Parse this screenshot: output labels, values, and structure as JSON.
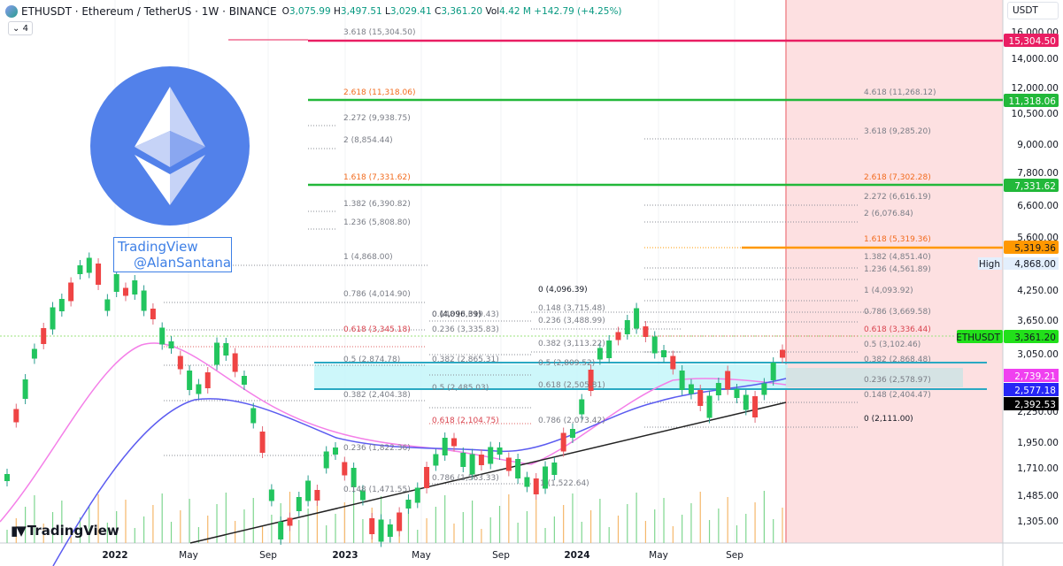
{
  "header": {
    "symbol_title": "ETHUSDT · Ethereum / TetherUS · 1W · BINANCE",
    "open_label": "O",
    "open": "3,075.99",
    "high_label": "H",
    "high": "3,497.51",
    "low_label": "L",
    "low": "3,029.41",
    "close_label": "C",
    "close": "3,361.20",
    "vol_label": "Vol",
    "vol": "4.42 M",
    "change": "+142.79 (+4.25%)",
    "indicators_toggle": "⌄ 4"
  },
  "currency_button": "USDT",
  "watermark": {
    "line1": "TradingView",
    "line2": "@AlanSantana"
  },
  "branding": "TradingView",
  "colors": {
    "up": "#22c55e",
    "down": "#ef4444",
    "fib_green": "#22b83a",
    "fib_pink": "#e91e63",
    "fib_orange": "#ff9800",
    "ma_pink": "#f47fe8",
    "ma_blue": "#5b5bf0",
    "trend": "#222222",
    "zone": "#c8f6fa",
    "projection_bg": "#fde0e1",
    "eth_blue": "#5281ea"
  },
  "chart_data": {
    "type": "candlestick",
    "title": "ETHUSDT · Ethereum / TetherUS · 1W · BINANCE",
    "xlabel": "",
    "ylabel": "USDT",
    "y_scale": "log",
    "ylim": [
      1200,
      17000
    ],
    "y_ticks": [
      "16,000.00",
      "14,000.00",
      "12,000.00",
      "10,500.00",
      "9,000.00",
      "7,800.00",
      "6,600.00",
      "5,600.00",
      "4,868.00",
      "4,250.00",
      "3,650.00",
      "3,050.00",
      "2,250.00",
      "1,950.00",
      "1,710.00",
      "1,485.00",
      "1,305.00"
    ],
    "x_ticks": [
      "2022",
      "May",
      "Sep",
      "2023",
      "May",
      "Sep",
      "2024",
      "May",
      "Sep"
    ],
    "price_labels": [
      {
        "value": "15,304.50",
        "color": "#e91e63"
      },
      {
        "value": "11,318.06",
        "color": "#22b83a"
      },
      {
        "value": "7,331.62",
        "color": "#22b83a"
      },
      {
        "value": "5,319.36",
        "color": "#ff9800"
      },
      {
        "value": "4,868.00",
        "tag": "High",
        "color": "#e3effd"
      },
      {
        "value": "3,361.20",
        "tag": "ETHUSDT",
        "color": "#22e01a"
      },
      {
        "value": "2,739.21",
        "color": "#f040f0"
      },
      {
        "value": "2,577.18",
        "color": "#2626f5"
      },
      {
        "value": "2,392.53",
        "color": "#000000"
      }
    ],
    "fib_extension_left": [
      {
        "label": "3.618 (15,304.50)",
        "value": 15304.5
      },
      {
        "label": "2.618 (11,318.06)",
        "value": 11318.06,
        "highlight": true
      },
      {
        "label": "2.272 (9,938.75)",
        "value": 9938.75
      },
      {
        "label": "2 (8,854.44)",
        "value": 8854.44
      },
      {
        "label": "1.618 (7,331.62)",
        "value": 7331.62,
        "highlight": true
      },
      {
        "label": "1.382 (6,390.82)",
        "value": 6390.82
      },
      {
        "label": "1.236 (5,808.80)",
        "value": 5808.8
      },
      {
        "label": "1 (4,868.00)",
        "value": 4868.0
      },
      {
        "label": "0.786 (4,014.90)",
        "value": 4014.9
      },
      {
        "label": "0.618 (3,345.18)",
        "value": 3345.18,
        "highlight": true
      },
      {
        "label": "0.5 (2,874.78)",
        "value": 2874.78
      },
      {
        "label": "0.382 (2,404.38)",
        "value": 2404.38
      },
      {
        "label": "0.236 (1,822.36)",
        "value": 1822.36
      },
      {
        "label": "0.148 (1,471.55)",
        "value": 1471.55
      }
    ],
    "fib_retracement_mid1": [
      {
        "label": "0 (4,096.39)",
        "value": 4096.39
      },
      {
        "label": "0.148 (3,619.43)",
        "value": 3619.43
      },
      {
        "label": "0.236 (3,335.83)",
        "value": 3335.83
      },
      {
        "label": "0.382 (2,865.31)",
        "value": 2865.31
      },
      {
        "label": "0.5 (2,485.03)",
        "value": 2485.03
      },
      {
        "label": "0.618 (2,104.75)",
        "value": 2104.75,
        "highlight": true
      },
      {
        "label": "0.786 (1,563.33)",
        "value": 1563.33
      },
      {
        "label": "1 (1,522.64)",
        "value": 1522.64
      }
    ],
    "fib_retracement_mid2": [
      {
        "label": "0 (4,096.39)",
        "value": 4096.39
      },
      {
        "label": "0.148 (3,715.48)",
        "value": 3715.48
      },
      {
        "label": "0.236 (3,488.99)",
        "value": 3488.99
      },
      {
        "label": "0.382 (3,113.22)",
        "value": 3113.22
      },
      {
        "label": "0.5 (2,809.52)",
        "value": 2809.52
      },
      {
        "label": "0.618 (2,505.81)",
        "value": 2505.81
      },
      {
        "label": "0.786 (2,073.42)",
        "value": 2073.42
      }
    ],
    "fib_extension_right": [
      {
        "label": "4.618 (11,268.12)",
        "value": 11268.12
      },
      {
        "label": "3.618 (9,285.20)",
        "value": 9285.2
      },
      {
        "label": "2.618 (7,302.28)",
        "value": 7302.28,
        "highlight": true
      },
      {
        "label": "2.272 (6,616.19)",
        "value": 6616.19
      },
      {
        "label": "2 (6,076.84)",
        "value": 6076.84
      },
      {
        "label": "1.618 (5,319.36)",
        "value": 5319.36,
        "highlight": true
      },
      {
        "label": "1.382 (4,851.40)",
        "value": 4851.4
      },
      {
        "label": "1.236 (4,561.89)",
        "value": 4561.89
      },
      {
        "label": "1 (4,093.92)",
        "value": 4093.92
      },
      {
        "label": "0.786 (3,669.58)",
        "value": 3669.58
      },
      {
        "label": "0.618 (3,336.44)",
        "value": 3336.44,
        "highlight": true
      },
      {
        "label": "0.5 (3,102.46)",
        "value": 3102.46
      },
      {
        "label": "0.382 (2,868.48)",
        "value": 2868.48
      },
      {
        "label": "0.236 (2,578.97)",
        "value": 2578.97
      },
      {
        "label": "0.148 (2,404.47)",
        "value": 2404.47
      },
      {
        "label": "0 (2,111.00)",
        "value": 2111.0
      }
    ],
    "support_zone": [
      2485,
      2875
    ],
    "series": [
      {
        "name": "MA pink",
        "last": 2739.21
      },
      {
        "name": "MA blue",
        "last": 2577.18
      },
      {
        "name": "Trendline",
        "last": 2392.53
      }
    ],
    "last_close": 3361.2,
    "all_time_high": 4868.0
  }
}
